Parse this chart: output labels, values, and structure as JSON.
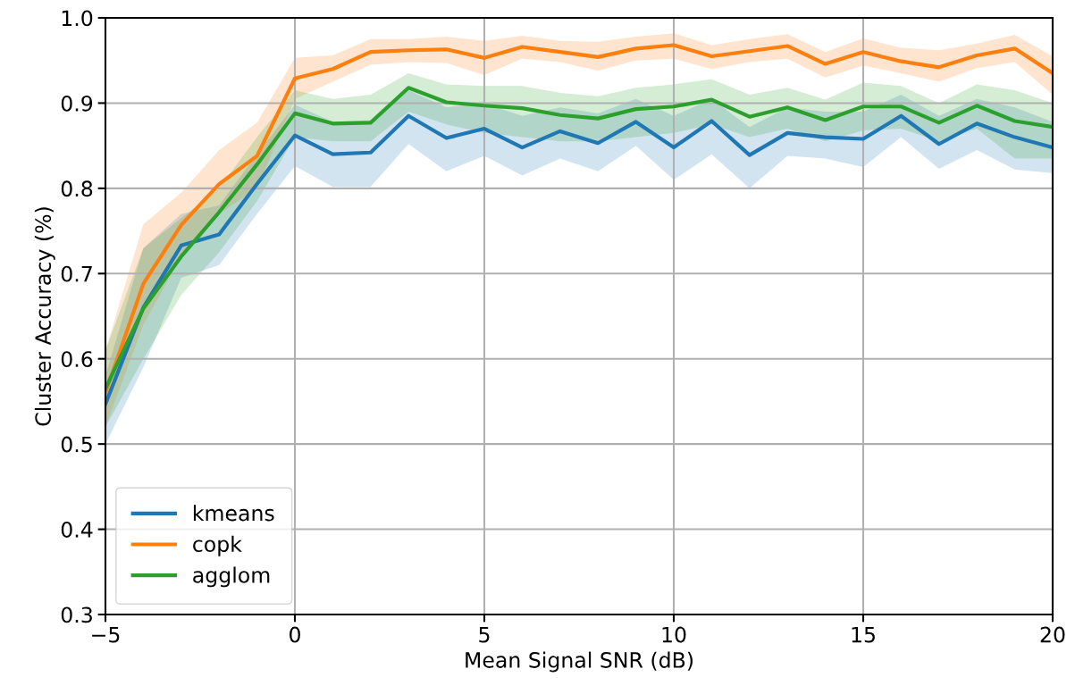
{
  "chart_data": {
    "type": "line",
    "xlabel": "Mean Signal SNR (dB)",
    "ylabel": "Cluster Accuracy (%)",
    "x": [
      -5,
      -4,
      -3,
      -2,
      -1,
      0,
      1,
      2,
      3,
      4,
      5,
      6,
      7,
      8,
      9,
      10,
      11,
      12,
      13,
      14,
      15,
      16,
      17,
      18,
      19,
      20
    ],
    "series": [
      {
        "name": "kmeans",
        "color": "#1f77b4",
        "values": [
          0.547,
          0.66,
          0.733,
          0.746,
          0.805,
          0.862,
          0.84,
          0.842,
          0.885,
          0.859,
          0.87,
          0.848,
          0.867,
          0.853,
          0.878,
          0.848,
          0.879,
          0.839,
          0.865,
          0.86,
          0.858,
          0.885,
          0.852,
          0.876,
          0.86,
          0.848
        ],
        "lower": [
          0.5,
          0.59,
          0.695,
          0.71,
          0.77,
          0.826,
          0.802,
          0.802,
          0.852,
          0.82,
          0.838,
          0.815,
          0.835,
          0.82,
          0.85,
          0.81,
          0.84,
          0.8,
          0.838,
          0.835,
          0.825,
          0.86,
          0.823,
          0.845,
          0.822,
          0.818
        ],
        "upper": [
          0.58,
          0.73,
          0.77,
          0.78,
          0.84,
          0.898,
          0.878,
          0.88,
          0.915,
          0.895,
          0.9,
          0.885,
          0.895,
          0.888,
          0.905,
          0.885,
          0.905,
          0.872,
          0.895,
          0.89,
          0.89,
          0.91,
          0.885,
          0.905,
          0.895,
          0.878
        ]
      },
      {
        "name": "copk",
        "color": "#ff7f0e",
        "values": [
          0.56,
          0.688,
          0.757,
          0.805,
          0.838,
          0.929,
          0.94,
          0.96,
          0.962,
          0.963,
          0.953,
          0.966,
          0.96,
          0.954,
          0.964,
          0.968,
          0.955,
          0.961,
          0.967,
          0.946,
          0.96,
          0.949,
          0.942,
          0.956,
          0.964,
          0.935
        ],
        "lower": [
          0.52,
          0.64,
          0.72,
          0.77,
          0.8,
          0.905,
          0.925,
          0.945,
          0.948,
          0.947,
          0.933,
          0.952,
          0.948,
          0.938,
          0.95,
          0.952,
          0.94,
          0.948,
          0.952,
          0.93,
          0.944,
          0.935,
          0.925,
          0.941,
          0.948,
          0.91
        ],
        "upper": [
          0.61,
          0.758,
          0.795,
          0.845,
          0.877,
          0.953,
          0.956,
          0.975,
          0.975,
          0.978,
          0.973,
          0.979,
          0.973,
          0.972,
          0.978,
          0.982,
          0.968,
          0.975,
          0.981,
          0.96,
          0.976,
          0.965,
          0.962,
          0.97,
          0.98,
          0.955
        ]
      },
      {
        "name": "agglom",
        "color": "#2ca02c",
        "values": [
          0.565,
          0.659,
          0.72,
          0.772,
          0.828,
          0.888,
          0.876,
          0.877,
          0.918,
          0.901,
          0.897,
          0.894,
          0.886,
          0.882,
          0.893,
          0.896,
          0.904,
          0.884,
          0.895,
          0.88,
          0.896,
          0.896,
          0.877,
          0.897,
          0.879,
          0.872
        ],
        "lower": [
          0.52,
          0.6,
          0.675,
          0.725,
          0.785,
          0.86,
          0.855,
          0.855,
          0.89,
          0.875,
          0.865,
          0.86,
          0.855,
          0.855,
          0.86,
          0.865,
          0.875,
          0.86,
          0.87,
          0.855,
          0.868,
          0.87,
          0.855,
          0.87,
          0.835,
          0.835
        ],
        "upper": [
          0.61,
          0.73,
          0.765,
          0.8,
          0.86,
          0.915,
          0.905,
          0.91,
          0.935,
          0.922,
          0.92,
          0.92,
          0.912,
          0.908,
          0.918,
          0.922,
          0.928,
          0.91,
          0.918,
          0.904,
          0.924,
          0.92,
          0.9,
          0.922,
          0.915,
          0.9
        ]
      }
    ],
    "xlim": [
      -5,
      20
    ],
    "xticks": [
      {
        "value": -5,
        "label": "−5"
      },
      0,
      5,
      10,
      15,
      20
    ],
    "ylim": [
      0.3,
      1.0
    ],
    "yticks": [
      0.3,
      0.4,
      0.5,
      0.6,
      0.7,
      0.8,
      0.9,
      {
        "value": 1.0,
        "label": "1.0"
      }
    ],
    "grid": true,
    "legend": "lower left",
    "line_style": "solid"
  }
}
